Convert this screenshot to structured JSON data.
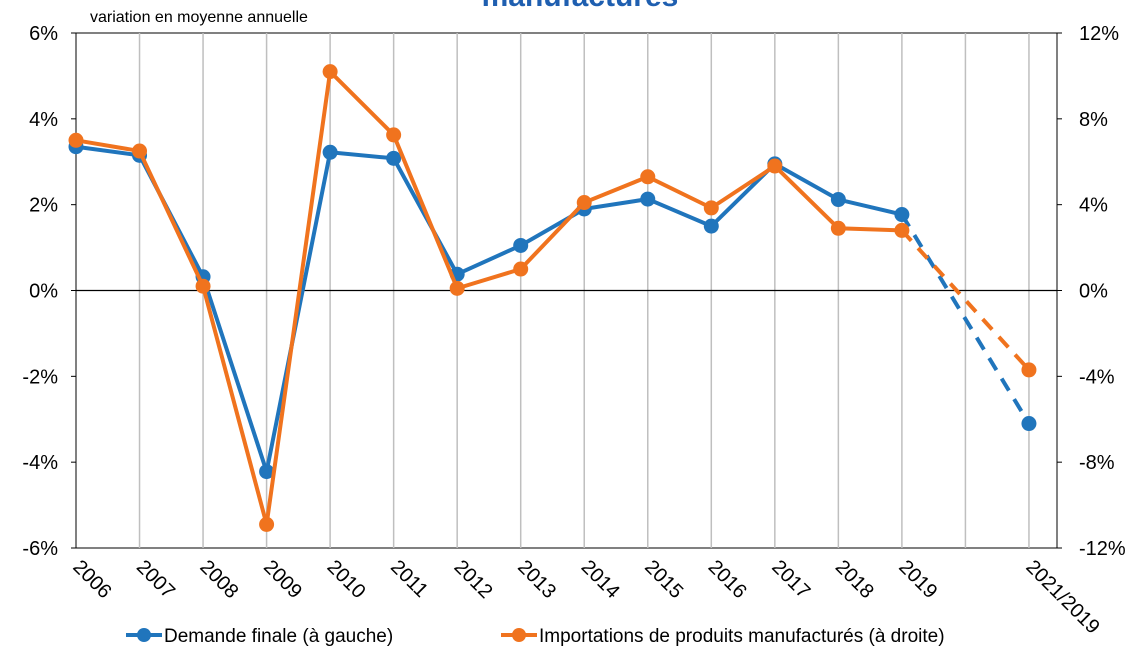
{
  "chart_data": {
    "type": "line",
    "title": "manufacturés",
    "subtitle": "variation en moyenne annuelle",
    "categories": [
      "2006",
      "2007",
      "2008",
      "2009",
      "2010",
      "2011",
      "2012",
      "2013",
      "2014",
      "2015",
      "2016",
      "2017",
      "2018",
      "2019",
      null,
      "2021/2019"
    ],
    "series": [
      {
        "name": "Demande finale (à gauche)",
        "color": "#2075bc",
        "axis": "y",
        "values": [
          3.35,
          3.15,
          0.32,
          -4.22,
          3.22,
          3.08,
          0.38,
          1.05,
          1.9,
          2.13,
          1.5,
          2.95,
          2.12,
          1.77,
          null,
          -3.1
        ]
      },
      {
        "name": "Importations de produits manufacturés (à droite)",
        "color": "#f0731e",
        "axis": "y2",
        "values": [
          7.0,
          6.5,
          0.2,
          -10.9,
          10.2,
          7.25,
          0.1,
          1.0,
          4.1,
          5.3,
          3.85,
          5.8,
          2.9,
          2.8,
          null,
          -3.7
        ]
      }
    ],
    "connect_gaps": "dashed",
    "ylim": [
      -6,
      6
    ],
    "yticks": [
      {
        "value": -6,
        "label": "-6%"
      },
      {
        "value": -4,
        "label": "-4%"
      },
      {
        "value": -2,
        "label": "-2%"
      },
      {
        "value": 0,
        "label": "0%"
      },
      {
        "value": 2,
        "label": "2%"
      },
      {
        "value": 4,
        "label": "4%"
      },
      {
        "value": 6,
        "label": "6%"
      }
    ],
    "y2lim": [
      -12,
      12
    ],
    "y2ticks": [
      {
        "value": -12,
        "label": "-12%"
      },
      {
        "value": -8,
        "label": "-8%"
      },
      {
        "value": -4,
        "label": "-4%"
      },
      {
        "value": 0,
        "label": "0%"
      },
      {
        "value": 4,
        "label": "4%"
      },
      {
        "value": 8,
        "label": "8%"
      },
      {
        "value": 12,
        "label": "12%"
      }
    ],
    "grid": "vertical",
    "legend": "bottom"
  }
}
